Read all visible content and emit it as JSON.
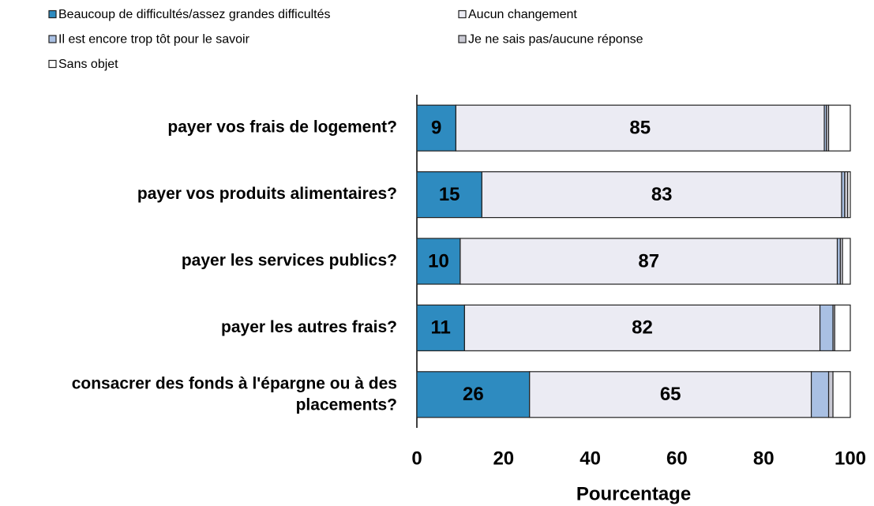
{
  "chart_data": {
    "type": "stacked-barh",
    "categories": [
      "payer vos frais de logement?",
      "payer vos produits alimentaires?",
      "payer les services publics?",
      "payer les autres frais?",
      "consacrer des fonds à l'épargne ou à des placements?"
    ],
    "series": [
      {
        "name": "Beaucoup de difficultés/assez grandes difficultés",
        "color": "#2e8bc0",
        "label_color": "#ffffff",
        "labels": true,
        "values": [
          9,
          15,
          10,
          11,
          26
        ]
      },
      {
        "name": "Aucun changement",
        "color": "#ebebf3",
        "label_color": "#000000",
        "labels": true,
        "values": [
          85,
          83,
          87,
          82,
          65
        ]
      },
      {
        "name": "Il est encore trop tôt pour le savoir",
        "color": "#a9c0e3",
        "labels": false,
        "values": [
          0.5,
          0.7,
          0.7,
          3,
          4
        ]
      },
      {
        "name": "Je ne sais pas/aucune réponse",
        "color": "#c9c9d3",
        "labels": false,
        "values": [
          0.5,
          0.7,
          0.5,
          0.4,
          1
        ]
      },
      {
        "name": "Sans objet",
        "color": "#ffffff",
        "labels": false,
        "values": [
          5,
          0.6,
          1.8,
          3.6,
          4
        ]
      }
    ],
    "xlabel": "Pourcentage",
    "xlim": [
      0,
      100
    ],
    "xticks": [
      0,
      20,
      40,
      60,
      80,
      100
    ]
  }
}
